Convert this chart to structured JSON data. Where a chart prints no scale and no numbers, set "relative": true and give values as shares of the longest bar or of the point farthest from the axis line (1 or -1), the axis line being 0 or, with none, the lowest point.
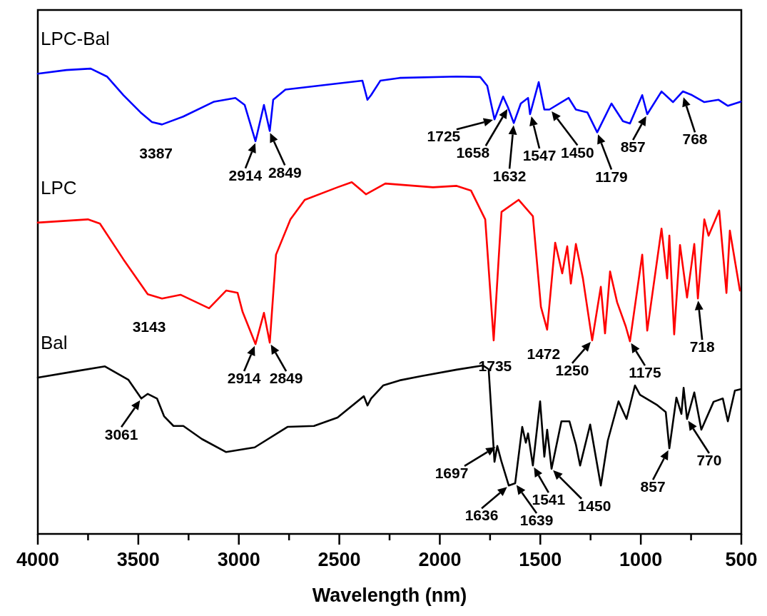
{
  "chart_data": {
    "type": "line",
    "relative": true,
    "xlabel": "Wavelength (nm)",
    "xlim": [
      4000,
      500
    ],
    "xticks": [
      4000,
      {
        "value": 3750,
        "label": null
      },
      3500,
      {
        "value": 3250,
        "label": null
      },
      3000,
      {
        "value": 2750,
        "label": null
      },
      2500,
      {
        "value": 2250,
        "label": null
      },
      2000,
      {
        "value": 1750,
        "label": null
      },
      1500,
      {
        "value": 1250,
        "label": null
      },
      1000,
      {
        "value": 750,
        "label": null
      },
      500
    ],
    "tick_labels": "x",
    "grid": false,
    "line_style": "solid",
    "series": [
      {
        "name": "LPC-Bal",
        "color": "#0000ff",
        "x": [
          4000,
          3858,
          3737,
          3656,
          3574,
          3489,
          3432,
          3382,
          3276,
          3123,
          3017,
          2971,
          2917,
          2875,
          2846,
          2829,
          2768,
          2509,
          2385,
          2360,
          2342,
          2296,
          2200,
          1916,
          1799,
          1764,
          1728,
          1685,
          1661,
          1632,
          1597,
          1561,
          1551,
          1508,
          1480,
          1455,
          1359,
          1323,
          1266,
          1217,
          1146,
          1089,
          1054,
          993,
          968,
          897,
          840,
          791,
          745,
          684,
          613,
          567,
          503
        ],
        "values": [
          0.989,
          0.997,
          1,
          0.983,
          0.943,
          0.906,
          0.885,
          0.88,
          0.897,
          0.929,
          0.937,
          0.922,
          0.844,
          0.922,
          0.866,
          0.933,
          0.955,
          0.968,
          0.974,
          0.933,
          0.943,
          0.974,
          0.98,
          0.983,
          0.982,
          0.963,
          0.891,
          0.94,
          0.917,
          0.883,
          0.925,
          0.937,
          0.902,
          0.971,
          0.912,
          0.912,
          0.937,
          0.912,
          0.906,
          0.863,
          0.925,
          0.887,
          0.882,
          0.943,
          0.902,
          0.951,
          0.928,
          0.951,
          0.943,
          0.928,
          0.933,
          0.92,
          0.929
        ]
      },
      {
        "name": "LPC",
        "color": "#ff0000",
        "x": [
          4000,
          3751,
          3691,
          3574,
          3453,
          3382,
          3290,
          3148,
          3063,
          3006,
          2981,
          2917,
          2875,
          2846,
          2815,
          2743,
          2672,
          2509,
          2438,
          2367,
          2271,
          2034,
          1916,
          1845,
          1774,
          1732,
          1693,
          1608,
          1537,
          1497,
          1466,
          1426,
          1391,
          1366,
          1348,
          1323,
          1288,
          1242,
          1199,
          1178,
          1153,
          1118,
          1075,
          1054,
          993,
          968,
          897,
          869,
          858,
          834,
          805,
          770,
          734,
          716,
          684,
          663,
          610,
          574,
          557,
          507
        ],
        "values": [
          0.669,
          0.676,
          0.667,
          0.59,
          0.515,
          0.506,
          0.514,
          0.485,
          0.523,
          0.518,
          0.477,
          0.408,
          0.475,
          0.411,
          0.6,
          0.676,
          0.718,
          0.745,
          0.756,
          0.73,
          0.753,
          0.745,
          0.748,
          0.738,
          0.676,
          0.416,
          0.692,
          0.718,
          0.683,
          0.488,
          0.439,
          0.626,
          0.56,
          0.618,
          0.538,
          0.623,
          0.549,
          0.416,
          0.531,
          0.431,
          0.564,
          0.498,
          0.446,
          0.414,
          0.6,
          0.437,
          0.656,
          0.549,
          0.641,
          0.429,
          0.621,
          0.508,
          0.623,
          0.506,
          0.676,
          0.641,
          0.695,
          0.518,
          0.652,
          0.523
        ]
      },
      {
        "name": "Bal",
        "color": "#000000",
        "x": [
          4000,
          3808,
          3666,
          3549,
          3485,
          3453,
          3407,
          3372,
          3325,
          3276,
          3184,
          3063,
          2921,
          2758,
          2626,
          2509,
          2378,
          2360,
          2342,
          2282,
          2200,
          2094,
          1916,
          1785,
          1757,
          1728,
          1714,
          1693,
          1657,
          1625,
          1590,
          1572,
          1561,
          1537,
          1501,
          1480,
          1466,
          1444,
          1395,
          1355,
          1323,
          1302,
          1252,
          1199,
          1164,
          1111,
          1071,
          1029,
          1004,
          922,
          876,
          858,
          823,
          798,
          787,
          770,
          734,
          699,
          638,
          592,
          567,
          532,
          503
        ],
        "values": [
          0.336,
          0.35,
          0.36,
          0.331,
          0.291,
          0.301,
          0.291,
          0.253,
          0.232,
          0.232,
          0.204,
          0.176,
          0.186,
          0.23,
          0.232,
          0.25,
          0.296,
          0.276,
          0.291,
          0.319,
          0.33,
          0.339,
          0.353,
          0.362,
          0.354,
          0.155,
          0.189,
          0.155,
          0.104,
          0.109,
          0.23,
          0.196,
          0.216,
          0.147,
          0.285,
          0.166,
          0.224,
          0.14,
          0.242,
          0.242,
          0.192,
          0.147,
          0.235,
          0.104,
          0.201,
          0.285,
          0.247,
          0.319,
          0.299,
          0.278,
          0.262,
          0.184,
          0.293,
          0.258,
          0.314,
          0.247,
          0.304,
          0.224,
          0.284,
          0.291,
          0.242,
          0.308,
          0.311
        ]
      }
    ],
    "annotations": [
      {
        "text": "3387",
        "x": 3387,
        "y": 0.88
      },
      {
        "text": "2914",
        "x": 2914,
        "y": 0.844
      },
      {
        "text": "2849",
        "x": 2849,
        "y": 0.866
      },
      {
        "text": "1725",
        "x": 1725,
        "y": 0.891
      },
      {
        "text": "1658",
        "x": 1658,
        "y": 0.917
      },
      {
        "text": "1632",
        "x": 1632,
        "y": 0.883
      },
      {
        "text": "1547",
        "x": 1547,
        "y": 0.902
      },
      {
        "text": "1450",
        "x": 1450,
        "y": 0.912
      },
      {
        "text": "1179",
        "x": 1217,
        "y": 0.863
      },
      {
        "text": "857",
        "x": 968,
        "y": 0.902
      },
      {
        "text": "768",
        "x": 791,
        "y": 0.943
      },
      {
        "text": "3143",
        "x": 3148,
        "y": 0.485
      },
      {
        "text": "2914",
        "x": 2917,
        "y": 0.408
      },
      {
        "text": "2849",
        "x": 2846,
        "y": 0.411
      },
      {
        "text": "1735",
        "x": 1732,
        "y": 0.416
      },
      {
        "text": "1472",
        "x": 1466,
        "y": 0.439
      },
      {
        "text": "1250",
        "x": 1242,
        "y": 0.416
      },
      {
        "text": "1175",
        "x": 1054,
        "y": 0.414
      },
      {
        "text": "718",
        "x": 716,
        "y": 0.506
      },
      {
        "text": "3061",
        "x": 3485,
        "y": 0.291
      },
      {
        "text": "1697",
        "x": 1714,
        "y": 0.189
      },
      {
        "text": "1636",
        "x": 1657,
        "y": 0.104
      },
      {
        "text": "1639",
        "x": 1625,
        "y": 0.109
      },
      {
        "text": "1541",
        "x": 1537,
        "y": 0.147
      },
      {
        "text": "1450",
        "x": 1444,
        "y": 0.14
      },
      {
        "text": "857",
        "x": 858,
        "y": 0.184
      },
      {
        "text": "770",
        "x": 770,
        "y": 0.247
      }
    ]
  }
}
